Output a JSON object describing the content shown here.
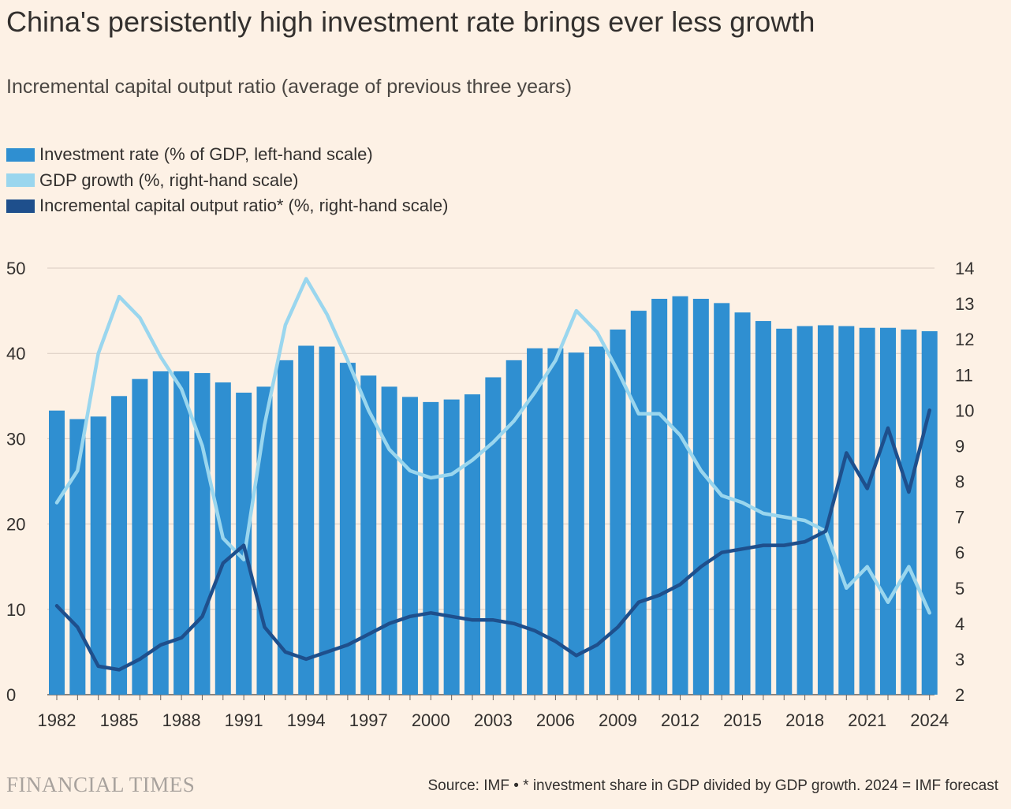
{
  "header": {
    "title": "China's persistently high investment rate brings ever less growth",
    "subtitle": "Incremental capital output ratio (average of previous three years)"
  },
  "legend": [
    {
      "label": "Investment rate (% of GDP, left-hand scale)",
      "color": "#2f8fd1"
    },
    {
      "label": "GDP growth (%, right-hand scale)",
      "color": "#9ad6ee"
    },
    {
      "label": "Incremental capital output ratio* (%, right-hand scale)",
      "color": "#1e4f8c"
    }
  ],
  "footer": {
    "brand": "FINANCIAL TIMES",
    "source": "Source: IMF • * investment share in GDP divided by GDP growth. 2024 = IMF forecast"
  },
  "chart_data": {
    "type": "bar",
    "title": "China's persistently high investment rate brings ever less growth",
    "subtitle": "Incremental capital output ratio (average of previous three years)",
    "x": [
      1982,
      1983,
      1984,
      1985,
      1986,
      1987,
      1988,
      1989,
      1990,
      1991,
      1992,
      1993,
      1994,
      1995,
      1996,
      1997,
      1998,
      1999,
      2000,
      2001,
      2002,
      2003,
      2004,
      2005,
      2006,
      2007,
      2008,
      2009,
      2010,
      2011,
      2012,
      2013,
      2014,
      2015,
      2016,
      2017,
      2018,
      2019,
      2020,
      2021,
      2022,
      2023,
      2024
    ],
    "x_tick_labels": [
      "1982",
      "1985",
      "1988",
      "1991",
      "1994",
      "1997",
      "2000",
      "2003",
      "2006",
      "2009",
      "2012",
      "2015",
      "2018",
      "2021",
      "2024"
    ],
    "left_axis": {
      "ylim": [
        0,
        50
      ],
      "ticks": [
        0,
        10,
        20,
        30,
        40,
        50
      ]
    },
    "right_axis": {
      "ylim": [
        2,
        14
      ],
      "ticks": [
        2,
        3,
        4,
        5,
        6,
        7,
        8,
        9,
        10,
        11,
        12,
        13,
        14
      ]
    },
    "grid": true,
    "legend_position": "top-left",
    "series": [
      {
        "name": "Investment rate (% of GDP, left-hand scale)",
        "type": "bar",
        "axis": "left",
        "color": "#2f8fd1",
        "values": [
          33.3,
          32.3,
          32.6,
          35.0,
          37.0,
          37.9,
          37.9,
          37.7,
          36.6,
          35.4,
          36.1,
          39.2,
          40.9,
          40.8,
          38.9,
          37.4,
          36.1,
          34.9,
          34.3,
          34.6,
          35.2,
          37.2,
          39.2,
          40.6,
          40.6,
          40.1,
          40.8,
          42.8,
          45.0,
          46.4,
          46.7,
          46.4,
          45.9,
          44.8,
          43.8,
          42.9,
          43.2,
          43.3,
          43.2,
          43.0,
          43.0,
          42.8,
          42.6
        ]
      },
      {
        "name": "GDP growth (%, right-hand scale)",
        "type": "line",
        "axis": "right",
        "color": "#9ad6ee",
        "values": [
          7.4,
          8.3,
          11.6,
          13.2,
          12.6,
          11.5,
          10.6,
          9.0,
          6.4,
          5.8,
          9.6,
          12.4,
          13.7,
          12.7,
          11.4,
          10.0,
          8.9,
          8.3,
          8.1,
          8.2,
          8.6,
          9.1,
          9.7,
          10.5,
          11.4,
          12.8,
          12.2,
          11.1,
          9.9,
          9.9,
          9.3,
          8.3,
          7.6,
          7.4,
          7.1,
          7.0,
          6.9,
          6.6,
          5.0,
          5.6,
          4.6,
          5.6,
          4.3
        ]
      },
      {
        "name": "Incremental capital output ratio* (%, right-hand scale)",
        "type": "line",
        "axis": "right",
        "color": "#1e4f8c",
        "values": [
          4.5,
          3.9,
          2.8,
          2.7,
          3.0,
          3.4,
          3.6,
          4.2,
          5.7,
          6.2,
          3.9,
          3.2,
          3.0,
          3.2,
          3.4,
          3.7,
          4.0,
          4.2,
          4.3,
          4.2,
          4.1,
          4.1,
          4.0,
          3.8,
          3.5,
          3.1,
          3.4,
          3.9,
          4.6,
          4.8,
          5.1,
          5.6,
          6.0,
          6.1,
          6.2,
          6.2,
          6.3,
          6.6,
          8.8,
          7.8,
          9.5,
          7.7,
          10.0
        ]
      }
    ]
  }
}
